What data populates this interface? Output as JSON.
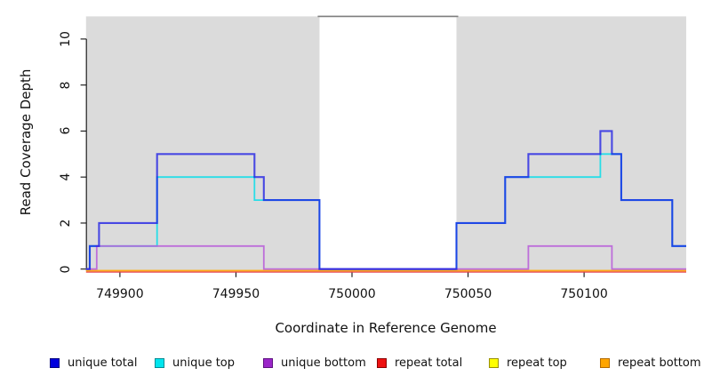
{
  "axes": {
    "x": {
      "label": "Coordinate in Reference Genome",
      "ticks": [
        749900,
        749950,
        750000,
        750050,
        750100
      ],
      "tick_labels": [
        "749900",
        "749950",
        "750000",
        "750050",
        "750100"
      ]
    },
    "y": {
      "label": "Read Coverage Depth",
      "ticks": [
        0,
        2,
        4,
        6,
        8,
        10
      ],
      "tick_labels": [
        "0",
        "2",
        "4",
        "6",
        "8",
        "10"
      ]
    }
  },
  "chart_data": {
    "type": "line",
    "subtype": "step-coverage",
    "xlim": [
      749885.4,
      750144
    ],
    "ylim": [
      0,
      11
    ],
    "grid": false,
    "background_color": "#ffffff",
    "shaded_regions": [
      {
        "start": 749885.4,
        "end": 749986,
        "color": "#dbdbdb"
      },
      {
        "start": 750045,
        "end": 750144,
        "color": "#dbdbdb"
      }
    ],
    "gap_region": {
      "start": 749986,
      "end": 750045,
      "marker_y": 11,
      "color": "#7e7e7e"
    },
    "series": [
      {
        "name": "unique total",
        "color": "#1414e6",
        "opacity": 0.74,
        "width": 2.1,
        "steps": [
          [
            749885.4,
            0
          ],
          [
            749887,
            1
          ],
          [
            749891,
            2
          ],
          [
            749916,
            5
          ],
          [
            749958,
            4
          ],
          [
            749962,
            3
          ],
          [
            749986,
            0
          ],
          [
            750045,
            2
          ],
          [
            750066,
            4
          ],
          [
            750076,
            5
          ],
          [
            750107,
            6
          ],
          [
            750112,
            5
          ],
          [
            750116,
            3
          ],
          [
            750138,
            1
          ],
          [
            750144,
            1
          ]
        ]
      },
      {
        "name": "unique top",
        "color": "#1fdde8",
        "opacity": 0.95,
        "width": 1.8,
        "steps": [
          [
            749885.4,
            0
          ],
          [
            749887,
            1
          ],
          [
            749916,
            4
          ],
          [
            749958,
            3
          ],
          [
            749986,
            0
          ],
          [
            750045,
            2
          ],
          [
            750066,
            4
          ],
          [
            750107,
            5
          ],
          [
            750116,
            3
          ],
          [
            750138,
            1
          ],
          [
            750144,
            1
          ]
        ]
      },
      {
        "name": "unique bottom",
        "color": "#b85fd9",
        "opacity": 0.88,
        "width": 1.8,
        "steps": [
          [
            749885.4,
            0
          ],
          [
            749890,
            1
          ],
          [
            749962,
            0
          ],
          [
            750076,
            1
          ],
          [
            750112,
            0
          ],
          [
            750144,
            0
          ]
        ]
      },
      {
        "name": "repeat total",
        "color": "#e23b50",
        "opacity": 0.92,
        "width": 1.6,
        "steps": [
          [
            749885.4,
            0
          ],
          [
            750144,
            0
          ]
        ]
      },
      {
        "name": "repeat top",
        "color": "#ffe800",
        "opacity": 0.95,
        "width": 1.6,
        "steps": [
          [
            749885.4,
            0
          ],
          [
            750144,
            0
          ]
        ]
      },
      {
        "name": "repeat bottom",
        "color": "#ffa319",
        "opacity": 0.95,
        "width": 1.8,
        "steps": [
          [
            749885.4,
            0
          ],
          [
            750144,
            0
          ]
        ]
      }
    ]
  },
  "legend": {
    "items": [
      {
        "label": "unique total",
        "color": "#0000dd",
        "border": "#000080"
      },
      {
        "label": "unique top",
        "color": "#00e5ee",
        "border": "#008b94"
      },
      {
        "label": "unique bottom",
        "color": "#9b26c9",
        "border": "#5e1280"
      },
      {
        "label": "repeat total",
        "color": "#ee1111",
        "border": "#8b0000"
      },
      {
        "label": "repeat top",
        "color": "#ffff00",
        "border": "#998f00"
      },
      {
        "label": "repeat bottom",
        "color": "#ffa500",
        "border": "#b36b00"
      }
    ]
  }
}
